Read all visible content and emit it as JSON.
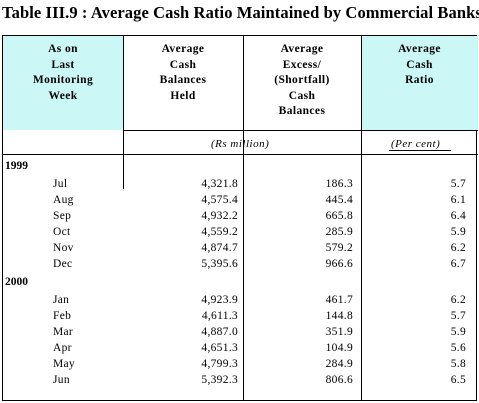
{
  "title": "Table III.9 : Average Cash Ratio Maintained by Commercial Banks",
  "headers": {
    "col1": [
      "As on",
      "Last",
      "Monitoring",
      "Week"
    ],
    "col2": [
      "Average",
      "Cash",
      "Balances",
      "Held"
    ],
    "col3": [
      "Average",
      "Excess/",
      "(Shortfall)",
      "Cash",
      "Balances"
    ],
    "col4": [
      "Average",
      "Cash",
      "Ratio"
    ]
  },
  "units": {
    "amount": "(Rs million)",
    "ratio": "(Per cent)"
  },
  "groups": [
    {
      "year": "1999",
      "rows": [
        {
          "month": "Jul",
          "held": "4,321.8",
          "excess": "186.3",
          "ratio": "5.7"
        },
        {
          "month": "Aug",
          "held": "4,575.4",
          "excess": "445.4",
          "ratio": "6.1"
        },
        {
          "month": "Sep",
          "held": "4,932.2",
          "excess": "665.8",
          "ratio": "6.4"
        },
        {
          "month": "Oct",
          "held": "4,559.2",
          "excess": "285.9",
          "ratio": "5.9"
        },
        {
          "month": "Nov",
          "held": "4,874.7",
          "excess": "579.2",
          "ratio": "6.2"
        },
        {
          "month": "Dec",
          "held": "5,395.6",
          "excess": "966.6",
          "ratio": "6.7"
        }
      ]
    },
    {
      "year": "2000",
      "rows": [
        {
          "month": "Jan",
          "held": "4,923.9",
          "excess": "461.7",
          "ratio": "6.2"
        },
        {
          "month": "Feb",
          "held": "4,611.3",
          "excess": "144.8",
          "ratio": "5.7"
        },
        {
          "month": "Mar",
          "held": "4,887.0",
          "excess": "351.9",
          "ratio": "5.9"
        },
        {
          "month": "Apr",
          "held": "4,651.3",
          "excess": "104.9",
          "ratio": "5.6"
        },
        {
          "month": "May",
          "held": "4,799.3",
          "excess": "284.9",
          "ratio": "5.8"
        },
        {
          "month": "Jun",
          "held": "5,392.3",
          "excess": "806.6",
          "ratio": "6.5"
        }
      ]
    }
  ]
}
